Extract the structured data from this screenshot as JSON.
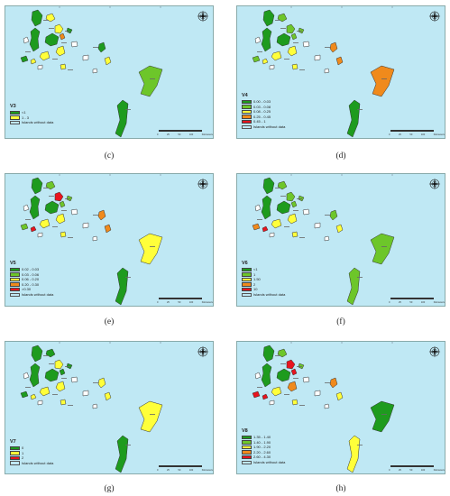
{
  "colors": {
    "sea": "#bfe8f4",
    "dark_green": "#1e9b1e",
    "light_green": "#6dc62a",
    "yellow": "#ffff3a",
    "orange": "#f08a1c",
    "red": "#e8141e",
    "white": "#ffffff"
  },
  "common": {
    "no_data_label": "Islands without data",
    "scale_ticks": [
      "0",
      "25",
      "50",
      "100"
    ],
    "scale_unit": "Kilometers",
    "compass_icon": "north-arrow-compass-icon"
  },
  "panels": [
    {
      "caption": "(c)",
      "legend": {
        "title": "V3",
        "items": [
          {
            "label": "<1",
            "color": "#1e9b1e"
          },
          {
            "label": "1 - 3",
            "color": "#ffff3a"
          }
        ]
      },
      "islands": [
        "#1e9b1e",
        "#ffff3a",
        "#1e9b1e",
        "#ffff3a",
        "#1e9b1e",
        "#f08a1c",
        "#ffff3a",
        "#1e9b1e",
        "#ffff3a",
        "#1e9b1e",
        "#ffff3a",
        "#ffff3a",
        "#1e9b1e",
        "#ffff3a",
        "#6dc62a",
        "#1e9b1e",
        "#ffffff",
        "#ffffff",
        "#ffffff",
        "#ffffff",
        "#ffffff"
      ]
    },
    {
      "caption": "(d)",
      "legend": {
        "title": "V4",
        "items": [
          {
            "label": "0.00 - 0.03",
            "color": "#1e9b1e"
          },
          {
            "label": "0.03 - 0.08",
            "color": "#6dc62a"
          },
          {
            "label": "0.08 - 0.25",
            "color": "#ffff3a"
          },
          {
            "label": "0.25 - 0.45",
            "color": "#f08a1c"
          },
          {
            "label": "0.45 - 1",
            "color": "#e8141e"
          }
        ]
      },
      "islands": [
        "#1e9b1e",
        "#6dc62a",
        "#1e9b1e",
        "#6dc62a",
        "#1e9b1e",
        "#6dc62a",
        "#ffff3a",
        "#6dc62a",
        "#ffff3a",
        "#6dc62a",
        "#ffff3a",
        "#ffff3a",
        "#f08a1c",
        "#f08a1c",
        "#f08a1c",
        "#1e9b1e",
        "#ffffff",
        "#ffffff",
        "#ffffff",
        "#ffffff",
        "#ffffff"
      ]
    },
    {
      "caption": "(e)",
      "legend": {
        "title": "V5",
        "items": [
          {
            "label": "0.02 - 0.03",
            "color": "#1e9b1e"
          },
          {
            "label": "0.03 - 0.06",
            "color": "#6dc62a"
          },
          {
            "label": "0.06 - 0.20",
            "color": "#ffff3a"
          },
          {
            "label": "0.20 - 0.30",
            "color": "#f08a1c"
          },
          {
            "label": ">0.30",
            "color": "#e8141e"
          }
        ]
      },
      "islands": [
        "#1e9b1e",
        "#6dc62a",
        "#1e9b1e",
        "#e8141e",
        "#1e9b1e",
        "#6dc62a",
        "#ffff3a",
        "#6dc62a",
        "#ffff3a",
        "#6dc62a",
        "#e8141e",
        "#ffff3a",
        "#f08a1c",
        "#f08a1c",
        "#ffff3a",
        "#1e9b1e",
        "#ffffff",
        "#ffffff",
        "#ffffff",
        "#ffffff",
        "#ffffff"
      ]
    },
    {
      "caption": "(f)",
      "legend": {
        "title": "V6",
        "items": [
          {
            "label": "<1",
            "color": "#1e9b1e"
          },
          {
            "label": "1",
            "color": "#6dc62a"
          },
          {
            "label": "1.50",
            "color": "#ffff3a"
          },
          {
            "label": "2",
            "color": "#f08a1c"
          },
          {
            "label": "10",
            "color": "#e8141e"
          }
        ]
      },
      "islands": [
        "#1e9b1e",
        "#6dc62a",
        "#1e9b1e",
        "#6dc62a",
        "#1e9b1e",
        "#6dc62a",
        "#ffff3a",
        "#6dc62a",
        "#ffff3a",
        "#f08a1c",
        "#e8141e",
        "#ffff3a",
        "#6dc62a",
        "#ffff3a",
        "#6dc62a",
        "#6dc62a",
        "#ffffff",
        "#ffffff",
        "#ffffff",
        "#ffffff",
        "#ffffff"
      ]
    },
    {
      "caption": "(g)",
      "legend": {
        "title": "V7",
        "items": [
          {
            "label": "0",
            "color": "#1e9b1e"
          },
          {
            "label": "1",
            "color": "#ffff3a"
          },
          {
            "label": "2",
            "color": "#e8141e"
          }
        ]
      },
      "islands": [
        "#1e9b1e",
        "#1e9b1e",
        "#1e9b1e",
        "#ffff3a",
        "#1e9b1e",
        "#1e9b1e",
        "#ffff3a",
        "#1e9b1e",
        "#ffff3a",
        "#1e9b1e",
        "#ffff3a",
        "#ffff3a",
        "#ffff3a",
        "#ffff3a",
        "#ffff3a",
        "#1e9b1e",
        "#ffffff",
        "#ffffff",
        "#ffffff",
        "#ffffff",
        "#ffffff"
      ]
    },
    {
      "caption": "(h)",
      "legend": {
        "title": "V8",
        "items": [
          {
            "label": "1.35 - 1.40",
            "color": "#1e9b1e"
          },
          {
            "label": "1.40 - 1.90",
            "color": "#6dc62a"
          },
          {
            "label": "1.90 - 2.20",
            "color": "#ffff3a"
          },
          {
            "label": "2.20 - 2.60",
            "color": "#f08a1c"
          },
          {
            "label": "2.60 - 4.30",
            "color": "#e8141e"
          }
        ]
      },
      "islands": [
        "#1e9b1e",
        "#6dc62a",
        "#1e9b1e",
        "#e8141e",
        "#1e9b1e",
        "#e8141e",
        "#f08a1c",
        "#6dc62a",
        "#ffff3a",
        "#e8141e",
        "#e8141e",
        "#ffff3a",
        "#f08a1c",
        "#ffff3a",
        "#1e9b1e",
        "#ffff3a",
        "#ffffff",
        "#ffffff",
        "#ffffff",
        "#ffffff",
        "#ffffff"
      ]
    }
  ]
}
